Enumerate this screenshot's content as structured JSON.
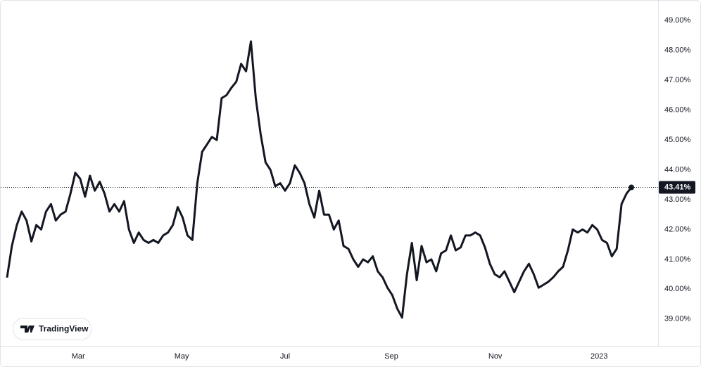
{
  "chart_data": {
    "type": "line",
    "color": "#131722",
    "values": [
      40.39,
      41.45,
      42.15,
      42.6,
      42.3,
      41.6,
      42.15,
      42.0,
      42.6,
      42.85,
      42.3,
      42.5,
      42.6,
      43.2,
      43.9,
      43.7,
      43.1,
      43.8,
      43.3,
      43.6,
      43.2,
      42.6,
      42.85,
      42.6,
      42.95,
      42.0,
      41.55,
      41.9,
      41.65,
      41.55,
      41.65,
      41.55,
      41.8,
      41.9,
      42.15,
      42.75,
      42.4,
      41.8,
      41.65,
      43.55,
      44.6,
      44.85,
      45.1,
      45.0,
      46.4,
      46.5,
      46.75,
      46.95,
      47.55,
      47.3,
      48.3,
      46.4,
      45.2,
      44.25,
      44.0,
      43.45,
      43.55,
      43.3,
      43.55,
      44.15,
      43.9,
      43.55,
      42.85,
      42.4,
      43.3,
      42.5,
      42.5,
      42.0,
      42.3,
      41.45,
      41.35,
      41.0,
      40.75,
      41.0,
      40.9,
      41.1,
      40.6,
      40.4,
      40.05,
      39.8,
      39.35,
      39.05,
      40.5,
      41.55,
      40.3,
      41.45,
      40.9,
      41.0,
      40.6,
      41.2,
      41.3,
      41.8,
      41.3,
      41.4,
      41.8,
      41.8,
      41.9,
      41.8,
      41.4,
      40.85,
      40.5,
      40.4,
      40.6,
      40.25,
      39.9,
      40.25,
      40.6,
      40.85,
      40.5,
      40.05,
      40.15,
      40.25,
      40.4,
      40.6,
      40.75,
      41.3,
      42.0,
      41.9,
      42.0,
      41.9,
      42.15,
      42.0,
      41.65,
      41.55,
      41.1,
      41.35,
      42.85,
      43.2,
      43.41
    ],
    "last_value_label": "43.41%",
    "ylim": [
      38.1,
      49.5
    ],
    "yticks": [
      {
        "value": 39,
        "label": "39.00%"
      },
      {
        "value": 40,
        "label": "40.00%"
      },
      {
        "value": 41,
        "label": "41.00%"
      },
      {
        "value": 42,
        "label": "42.00%"
      },
      {
        "value": 43,
        "label": "43.00%"
      },
      {
        "value": 44,
        "label": "44.00%"
      },
      {
        "value": 45,
        "label": "45.00%"
      },
      {
        "value": 46,
        "label": "46.00%"
      },
      {
        "value": 47,
        "label": "47.00%"
      },
      {
        "value": 48,
        "label": "48.00%"
      },
      {
        "value": 49,
        "label": "49.00%"
      }
    ],
    "xticks": [
      {
        "value": 14.6,
        "label": "Mar"
      },
      {
        "value": 35.8,
        "label": "May"
      },
      {
        "value": 57.0,
        "label": "Jul"
      },
      {
        "value": 78.8,
        "label": "Sep"
      },
      {
        "value": 100.1,
        "label": "Nov"
      },
      {
        "value": 121.4,
        "label": "2023"
      }
    ],
    "watermark": "TradingView"
  }
}
